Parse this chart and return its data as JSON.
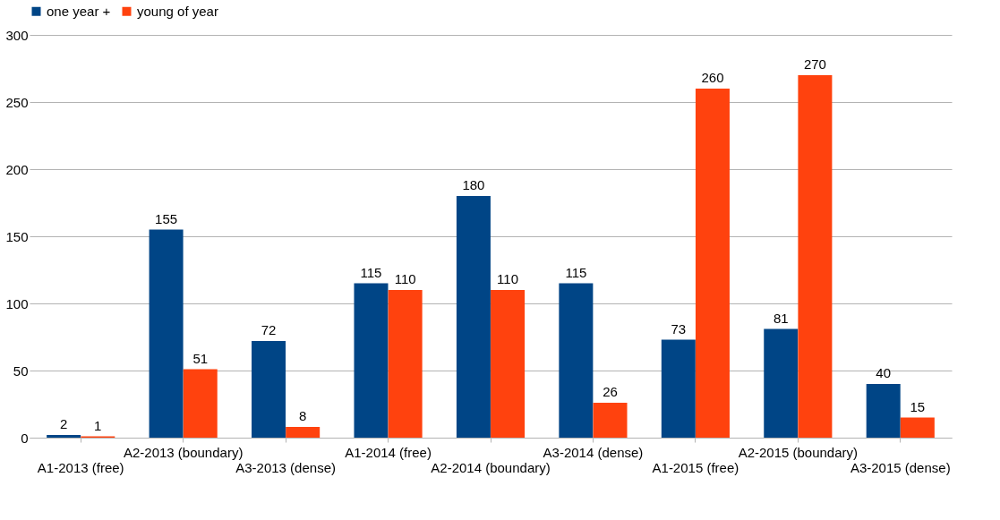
{
  "chart_data": {
    "type": "bar",
    "categories": [
      "A1-2013 (free)",
      "A2-2013 (boundary)",
      "A3-2013 (dense)",
      "A1-2014 (free)",
      "A2-2014 (boundary)",
      "A3-2014 (dense)",
      "A1-2015 (free)",
      "A2-2015 (boundary)",
      "A3-2015 (dense)"
    ],
    "series": [
      {
        "name": "one year +",
        "color": "#004586",
        "values": [
          2,
          155,
          72,
          115,
          180,
          115,
          73,
          81,
          40
        ]
      },
      {
        "name": "young of year",
        "color": "#ff420e",
        "values": [
          1,
          51,
          8,
          110,
          110,
          26,
          260,
          270,
          15
        ]
      }
    ],
    "ylim": [
      0,
      300
    ],
    "yticks": [
      0,
      50,
      100,
      150,
      200,
      250,
      300
    ],
    "grid": "y",
    "legend": "top",
    "data_labels": true
  }
}
